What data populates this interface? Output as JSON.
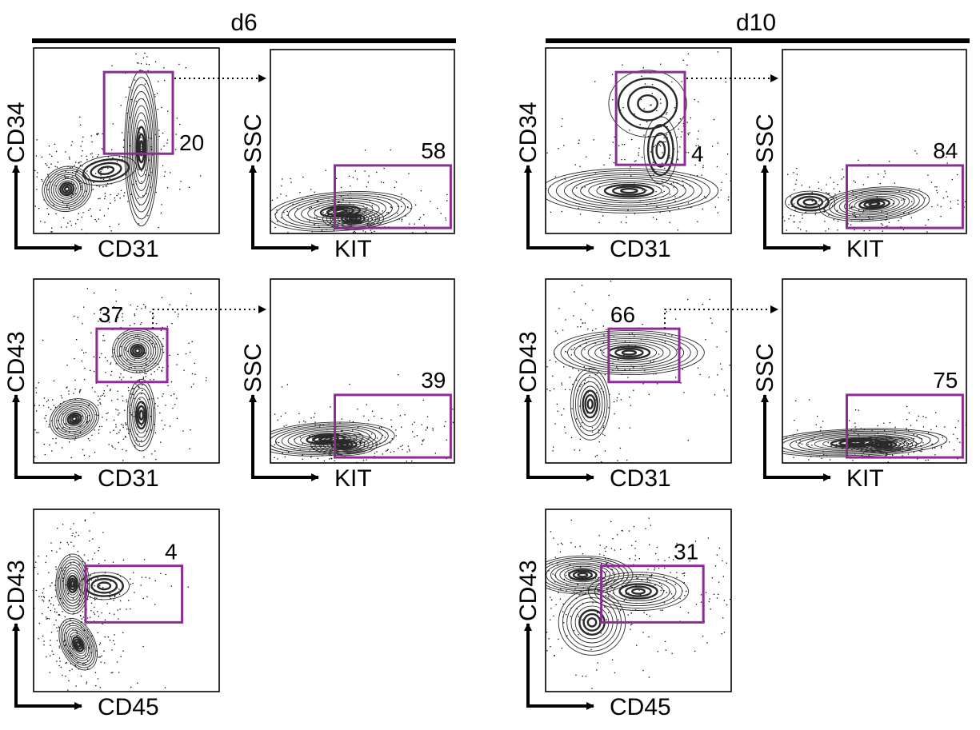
{
  "figure": {
    "columns": [
      {
        "title": "d6"
      },
      {
        "title": "d10"
      }
    ]
  },
  "colors": {
    "gate": "#8E2C96",
    "ink": "#000000",
    "contour": "#2a2a2a"
  },
  "chart_data": [
    {
      "type": "scatter",
      "id": "d6-cd34-cd31",
      "column": "d6",
      "xlabel": "CD31",
      "ylabel": "CD34",
      "gate_percent": "20",
      "gate": {
        "x": [
          0.38,
          0.75
        ],
        "y": [
          0.43,
          0.87
        ]
      },
      "gated_into": "d6-ssc-kit-top",
      "populations": [
        {
          "x": 0.18,
          "y": 0.24,
          "sx": 0.09,
          "sy": 0.08,
          "rot": 20,
          "w": 1.0
        },
        {
          "x": 0.58,
          "y": 0.46,
          "sx": 0.06,
          "sy": 0.28,
          "rot": 0,
          "w": 1.0
        },
        {
          "x": 0.39,
          "y": 0.34,
          "sx": 0.11,
          "sy": 0.05,
          "rot": 10,
          "w": 0.25
        }
      ]
    },
    {
      "type": "scatter",
      "id": "d6-ssc-kit-top",
      "column": "d6",
      "xlabel": "KIT",
      "ylabel": "SSC",
      "gate_percent": "58",
      "gate": {
        "x": [
          0.35,
          0.98
        ],
        "y": [
          0.03,
          0.37
        ]
      },
      "populations": [
        {
          "x": 0.38,
          "y": 0.12,
          "sx": 0.26,
          "sy": 0.07,
          "rot": 4,
          "w": 1.0
        },
        {
          "x": 0.45,
          "y": 0.08,
          "sx": 0.11,
          "sy": 0.04,
          "rot": 0,
          "w": 0.6
        }
      ]
    },
    {
      "type": "scatter",
      "id": "d6-cd43-cd31",
      "column": "d6",
      "xlabel": "CD31",
      "ylabel": "CD43",
      "gate_percent": "37",
      "gate": {
        "x": [
          0.34,
          0.72
        ],
        "y": [
          0.44,
          0.73
        ]
      },
      "gated_into": "d6-ssc-kit-middle",
      "populations": [
        {
          "x": 0.22,
          "y": 0.24,
          "sx": 0.09,
          "sy": 0.07,
          "rot": 20,
          "w": 1.0
        },
        {
          "x": 0.56,
          "y": 0.61,
          "sx": 0.09,
          "sy": 0.08,
          "rot": 0,
          "w": 1.0
        },
        {
          "x": 0.58,
          "y": 0.26,
          "sx": 0.05,
          "sy": 0.13,
          "rot": 0,
          "w": 0.7
        }
      ]
    },
    {
      "type": "scatter",
      "id": "d6-ssc-kit-middle",
      "column": "d6",
      "xlabel": "KIT",
      "ylabel": "SSC",
      "gate_percent": "39",
      "gate": {
        "x": [
          0.35,
          0.98
        ],
        "y": [
          0.03,
          0.37
        ]
      },
      "populations": [
        {
          "x": 0.3,
          "y": 0.13,
          "sx": 0.25,
          "sy": 0.06,
          "rot": 3,
          "w": 1.0
        },
        {
          "x": 0.4,
          "y": 0.1,
          "sx": 0.12,
          "sy": 0.04,
          "rot": 0,
          "w": 0.6
        }
      ]
    },
    {
      "type": "scatter",
      "id": "d6-cd43-cd45",
      "column": "d6",
      "xlabel": "CD45",
      "ylabel": "CD43",
      "gate_percent": "4",
      "gate": {
        "x": [
          0.28,
          0.8
        ],
        "y": [
          0.38,
          0.69
        ]
      },
      "populations": [
        {
          "x": 0.21,
          "y": 0.59,
          "sx": 0.06,
          "sy": 0.11,
          "rot": 0,
          "w": 1.0
        },
        {
          "x": 0.24,
          "y": 0.26,
          "sx": 0.06,
          "sy": 0.1,
          "rot": 25,
          "w": 1.0
        },
        {
          "x": 0.38,
          "y": 0.58,
          "sx": 0.09,
          "sy": 0.05,
          "rot": 0,
          "w": 0.2
        }
      ]
    },
    {
      "type": "scatter",
      "id": "d10-cd34-cd31",
      "column": "d10",
      "xlabel": "CD31",
      "ylabel": "CD34",
      "gate_percent": "4",
      "gate": {
        "x": [
          0.38,
          0.75
        ],
        "y": [
          0.37,
          0.87
        ]
      },
      "gated_into": "d10-ssc-kit-top",
      "populations": [
        {
          "x": 0.45,
          "y": 0.23,
          "sx": 0.32,
          "sy": 0.08,
          "rot": 0,
          "w": 1.0
        },
        {
          "x": 0.62,
          "y": 0.45,
          "sx": 0.06,
          "sy": 0.12,
          "rot": 0,
          "w": 0.4
        },
        {
          "x": 0.55,
          "y": 0.7,
          "sx": 0.14,
          "sy": 0.12,
          "rot": 0,
          "w": 0.1
        }
      ]
    },
    {
      "type": "scatter",
      "id": "d10-ssc-kit-top",
      "column": "d10",
      "xlabel": "KIT",
      "ylabel": "SSC",
      "gate_percent": "84",
      "gate": {
        "x": [
          0.35,
          0.98
        ],
        "y": [
          0.03,
          0.37
        ]
      },
      "populations": [
        {
          "x": 0.5,
          "y": 0.16,
          "sx": 0.2,
          "sy": 0.06,
          "rot": 5,
          "w": 1.0
        },
        {
          "x": 0.15,
          "y": 0.17,
          "sx": 0.09,
          "sy": 0.04,
          "rot": 0,
          "w": 0.3
        }
      ]
    },
    {
      "type": "scatter",
      "id": "d10-cd43-cd31",
      "column": "d10",
      "xlabel": "CD31",
      "ylabel": "CD43",
      "gate_percent": "66",
      "gate": {
        "x": [
          0.34,
          0.72
        ],
        "y": [
          0.44,
          0.73
        ]
      },
      "gated_into": "d10-ssc-kit-middle",
      "populations": [
        {
          "x": 0.45,
          "y": 0.6,
          "sx": 0.27,
          "sy": 0.08,
          "rot": 0,
          "w": 1.0
        },
        {
          "x": 0.24,
          "y": 0.32,
          "sx": 0.07,
          "sy": 0.13,
          "rot": 0,
          "w": 0.7
        }
      ]
    },
    {
      "type": "scatter",
      "id": "d10-ssc-kit-middle",
      "column": "d10",
      "xlabel": "KIT",
      "ylabel": "SSC",
      "gate_percent": "75",
      "gate": {
        "x": [
          0.35,
          0.98
        ],
        "y": [
          0.03,
          0.37
        ]
      },
      "populations": [
        {
          "x": 0.4,
          "y": 0.11,
          "sx": 0.33,
          "sy": 0.05,
          "rot": 2,
          "w": 1.0
        },
        {
          "x": 0.55,
          "y": 0.1,
          "sx": 0.12,
          "sy": 0.03,
          "rot": 0,
          "w": 0.6
        }
      ]
    },
    {
      "type": "scatter",
      "id": "d10-cd43-cd45",
      "column": "d10",
      "xlabel": "CD45",
      "ylabel": "CD43",
      "gate_percent": "31",
      "gate": {
        "x": [
          0.3,
          0.85
        ],
        "y": [
          0.38,
          0.69
        ]
      },
      "populations": [
        {
          "x": 0.2,
          "y": 0.64,
          "sx": 0.18,
          "sy": 0.07,
          "rot": 0,
          "w": 1.0
        },
        {
          "x": 0.5,
          "y": 0.55,
          "sx": 0.18,
          "sy": 0.07,
          "rot": 0,
          "w": 0.8
        },
        {
          "x": 0.25,
          "y": 0.38,
          "sx": 0.12,
          "sy": 0.12,
          "rot": 0,
          "w": 0.5
        }
      ]
    }
  ]
}
